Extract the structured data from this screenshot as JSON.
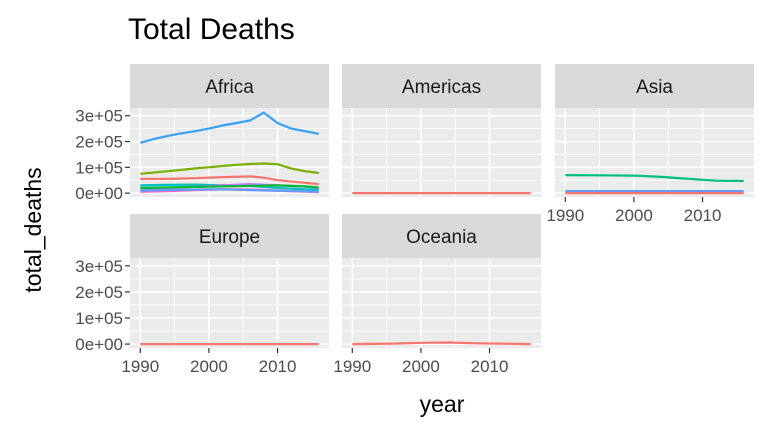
{
  "chart_data": {
    "type": "line",
    "title": "Total Deaths",
    "xlabel": "year",
    "ylabel": "total_deaths",
    "x_ticks": [
      1990,
      2000,
      2010
    ],
    "y_ticks": [
      {
        "value": 0,
        "label": "0e+00"
      },
      {
        "value": 100000,
        "label": "1e+05"
      },
      {
        "value": 200000,
        "label": "2e+05"
      },
      {
        "value": 300000,
        "label": "3e+05"
      }
    ],
    "xlim": [
      1988.5,
      2017.5
    ],
    "ylim": [
      -15000,
      330000
    ],
    "grid": true,
    "legend": "none",
    "colors": {
      "panel_bg": "#ebebeb",
      "strip_bg": "#d9d9d9",
      "grid": "#ffffff",
      "text": "#000000",
      "tick_text": "#4d4d4d"
    },
    "facets": [
      {
        "name": "Africa",
        "series": [
          {
            "color": "#35a2ff",
            "x": [
              1990,
              1992,
              1994,
              1996,
              1998,
              2000,
              2002,
              2004,
              2006,
              2008,
              2010,
              2012,
              2014,
              2016
            ],
            "y": [
              195000,
              210000,
              222000,
              232000,
              240000,
              250000,
              262000,
              272000,
              282000,
              312000,
              272000,
              250000,
              240000,
              230000
            ]
          },
          {
            "color": "#7cae00",
            "x": [
              1990,
              1992,
              1994,
              1996,
              1998,
              2000,
              2002,
              2004,
              2006,
              2008,
              2010,
              2012,
              2014,
              2016
            ],
            "y": [
              75000,
              80000,
              85000,
              90000,
              96000,
              100000,
              105000,
              110000,
              113000,
              115000,
              112000,
              95000,
              85000,
              78000
            ]
          },
          {
            "color": "#f8766d",
            "x": [
              1990,
              1994,
              1998,
              2002,
              2006,
              2008,
              2010,
              2014,
              2016
            ],
            "y": [
              55000,
              55000,
              58000,
              62000,
              65000,
              60000,
              50000,
              40000,
              35000
            ]
          },
          {
            "color": "#00bfc4",
            "x": [
              1990,
              1994,
              1998,
              2002,
              2006,
              2010,
              2014,
              2016
            ],
            "y": [
              30000,
              32000,
              33000,
              30000,
              28000,
              20000,
              15000,
              12000
            ]
          },
          {
            "color": "#c77cff",
            "x": [
              1990,
              1994,
              1998,
              2002,
              2006,
              2010,
              2014,
              2016
            ],
            "y": [
              15000,
              20000,
              25000,
              30000,
              35000,
              30000,
              25000,
              20000
            ]
          },
          {
            "color": "#00ba38",
            "x": [
              1990,
              1994,
              1998,
              2002,
              2006,
              2010,
              2014,
              2016
            ],
            "y": [
              20000,
              22000,
              24000,
              26000,
              28000,
              30000,
              26000,
              22000
            ]
          },
          {
            "color": "#ff61c3",
            "x": [
              1990,
              1994,
              1998,
              2002,
              2006,
              2010,
              2014,
              2016
            ],
            "y": [
              5000,
              8000,
              12000,
              15000,
              14000,
              10000,
              6000,
              4000
            ]
          },
          {
            "color": "#619cff",
            "x": [
              1990,
              1994,
              1998,
              2002,
              2006,
              2010,
              2014,
              2016
            ],
            "y": [
              10000,
              12000,
              14000,
              15000,
              12000,
              9000,
              7000,
              5000
            ]
          }
        ]
      },
      {
        "name": "Americas",
        "series": [
          {
            "color": "#f8766d",
            "x": [
              1990,
              2016
            ],
            "y": [
              0,
              0
            ]
          }
        ]
      },
      {
        "name": "Asia",
        "series": [
          {
            "color": "#00bf7d",
            "x": [
              1990,
              1995,
              2000,
              2004,
              2008,
              2012,
              2016
            ],
            "y": [
              70000,
              69000,
              68000,
              63000,
              55000,
              48000,
              47000
            ]
          },
          {
            "color": "#619cff",
            "x": [
              1990,
              2016
            ],
            "y": [
              8000,
              8000
            ]
          },
          {
            "color": "#f8766d",
            "x": [
              1990,
              2016
            ],
            "y": [
              0,
              0
            ]
          }
        ]
      },
      {
        "name": "Europe",
        "series": [
          {
            "color": "#f8766d",
            "x": [
              1990,
              2016
            ],
            "y": [
              0,
              0
            ]
          }
        ]
      },
      {
        "name": "Oceania",
        "series": [
          {
            "color": "#f8766d",
            "x": [
              1990,
              1996,
              2000,
              2004,
              2008,
              2016
            ],
            "y": [
              0,
              2000,
              5000,
              6000,
              3000,
              0
            ]
          }
        ]
      }
    ]
  }
}
